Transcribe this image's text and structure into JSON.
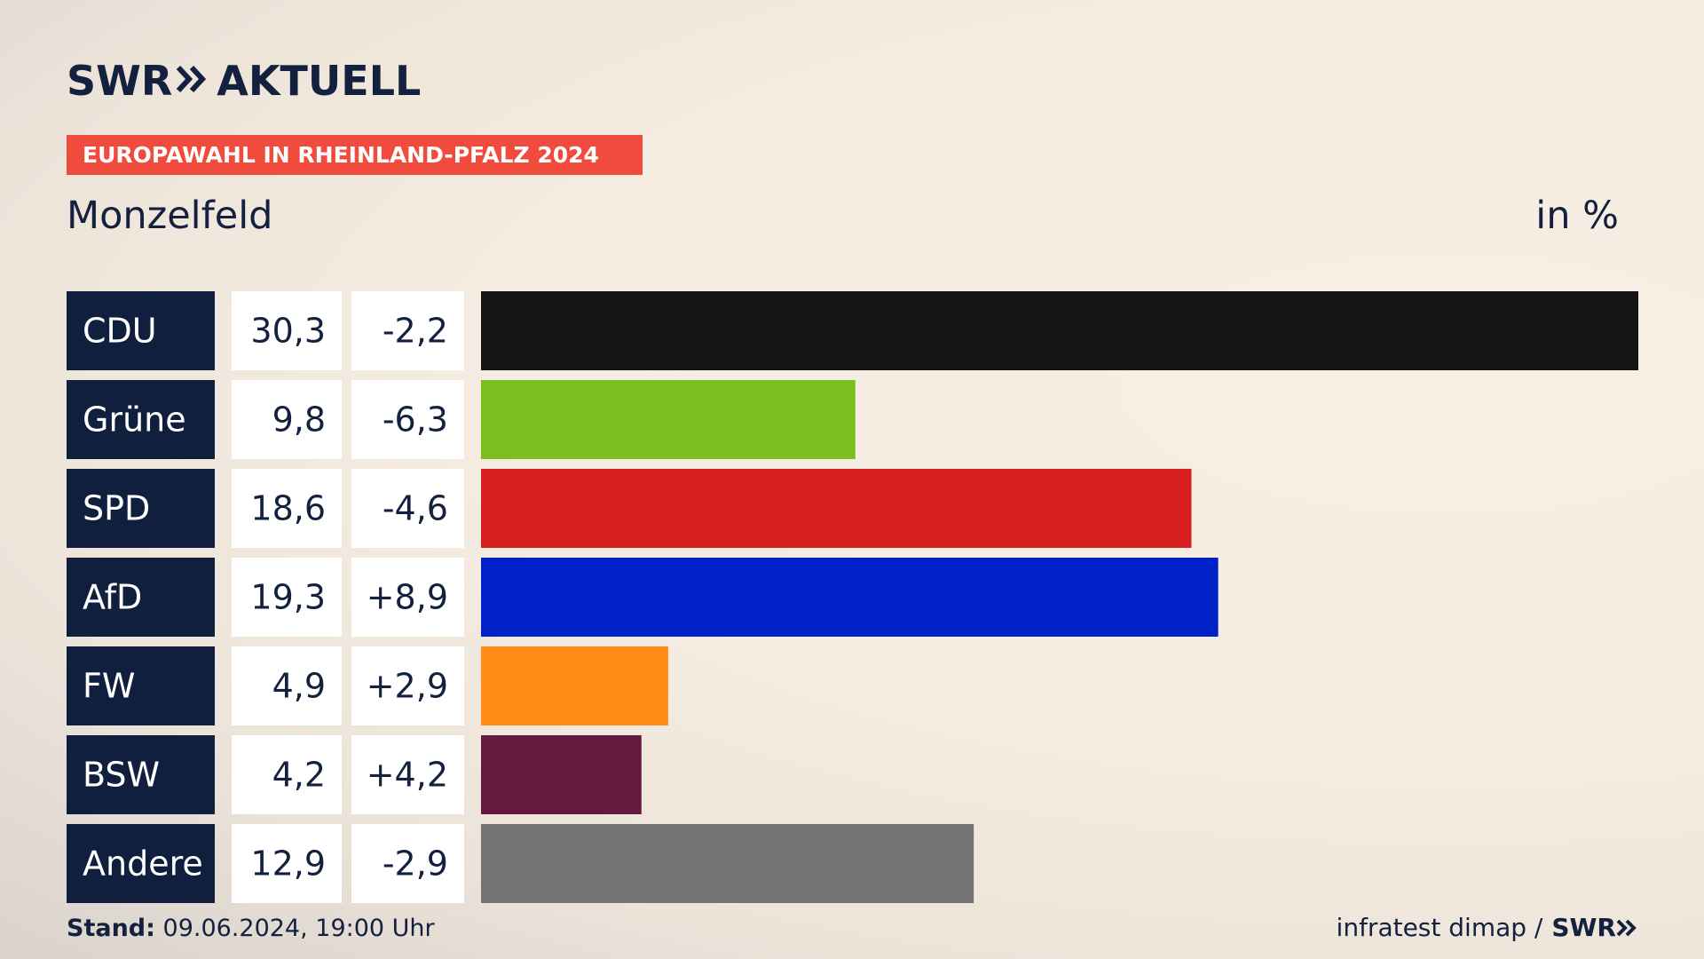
{
  "header": {
    "brand": "SWR",
    "brand_suffix": "AKTUELL",
    "banner": "EUROPAWAHL IN RHEINLAND-PFALZ 2024",
    "place": "Monzelfeld",
    "unit": "in %"
  },
  "footer": {
    "stand_label": "Stand:",
    "stand_value": "09.06.2024, 19:00 Uhr",
    "source": "infratest dimap /",
    "source_brand": "SWR"
  },
  "colors": {
    "label_bg": "#0f1f3d",
    "value_bg": "#ffffff",
    "banner": "#f04b3c"
  },
  "chart_data": {
    "type": "bar",
    "orientation": "horizontal",
    "categories": [
      "CDU",
      "Grüne",
      "SPD",
      "AfD",
      "FW",
      "BSW",
      "Andere"
    ],
    "values": [
      30.3,
      9.8,
      18.6,
      19.3,
      4.9,
      4.2,
      12.9
    ],
    "value_labels": [
      "30,3",
      "9,8",
      "18,6",
      "19,3",
      "4,9",
      "4,2",
      "12,9"
    ],
    "changes": [
      "-2,2",
      "-6,3",
      "-4,6",
      "+8,9",
      "+2,9",
      "+4,2",
      "-2,9"
    ],
    "colors": [
      "#141414",
      "#7bbf1e",
      "#d61f1f",
      "#0021c8",
      "#ff8c14",
      "#66193f",
      "#737373"
    ],
    "xlim": [
      0,
      30.3
    ]
  }
}
